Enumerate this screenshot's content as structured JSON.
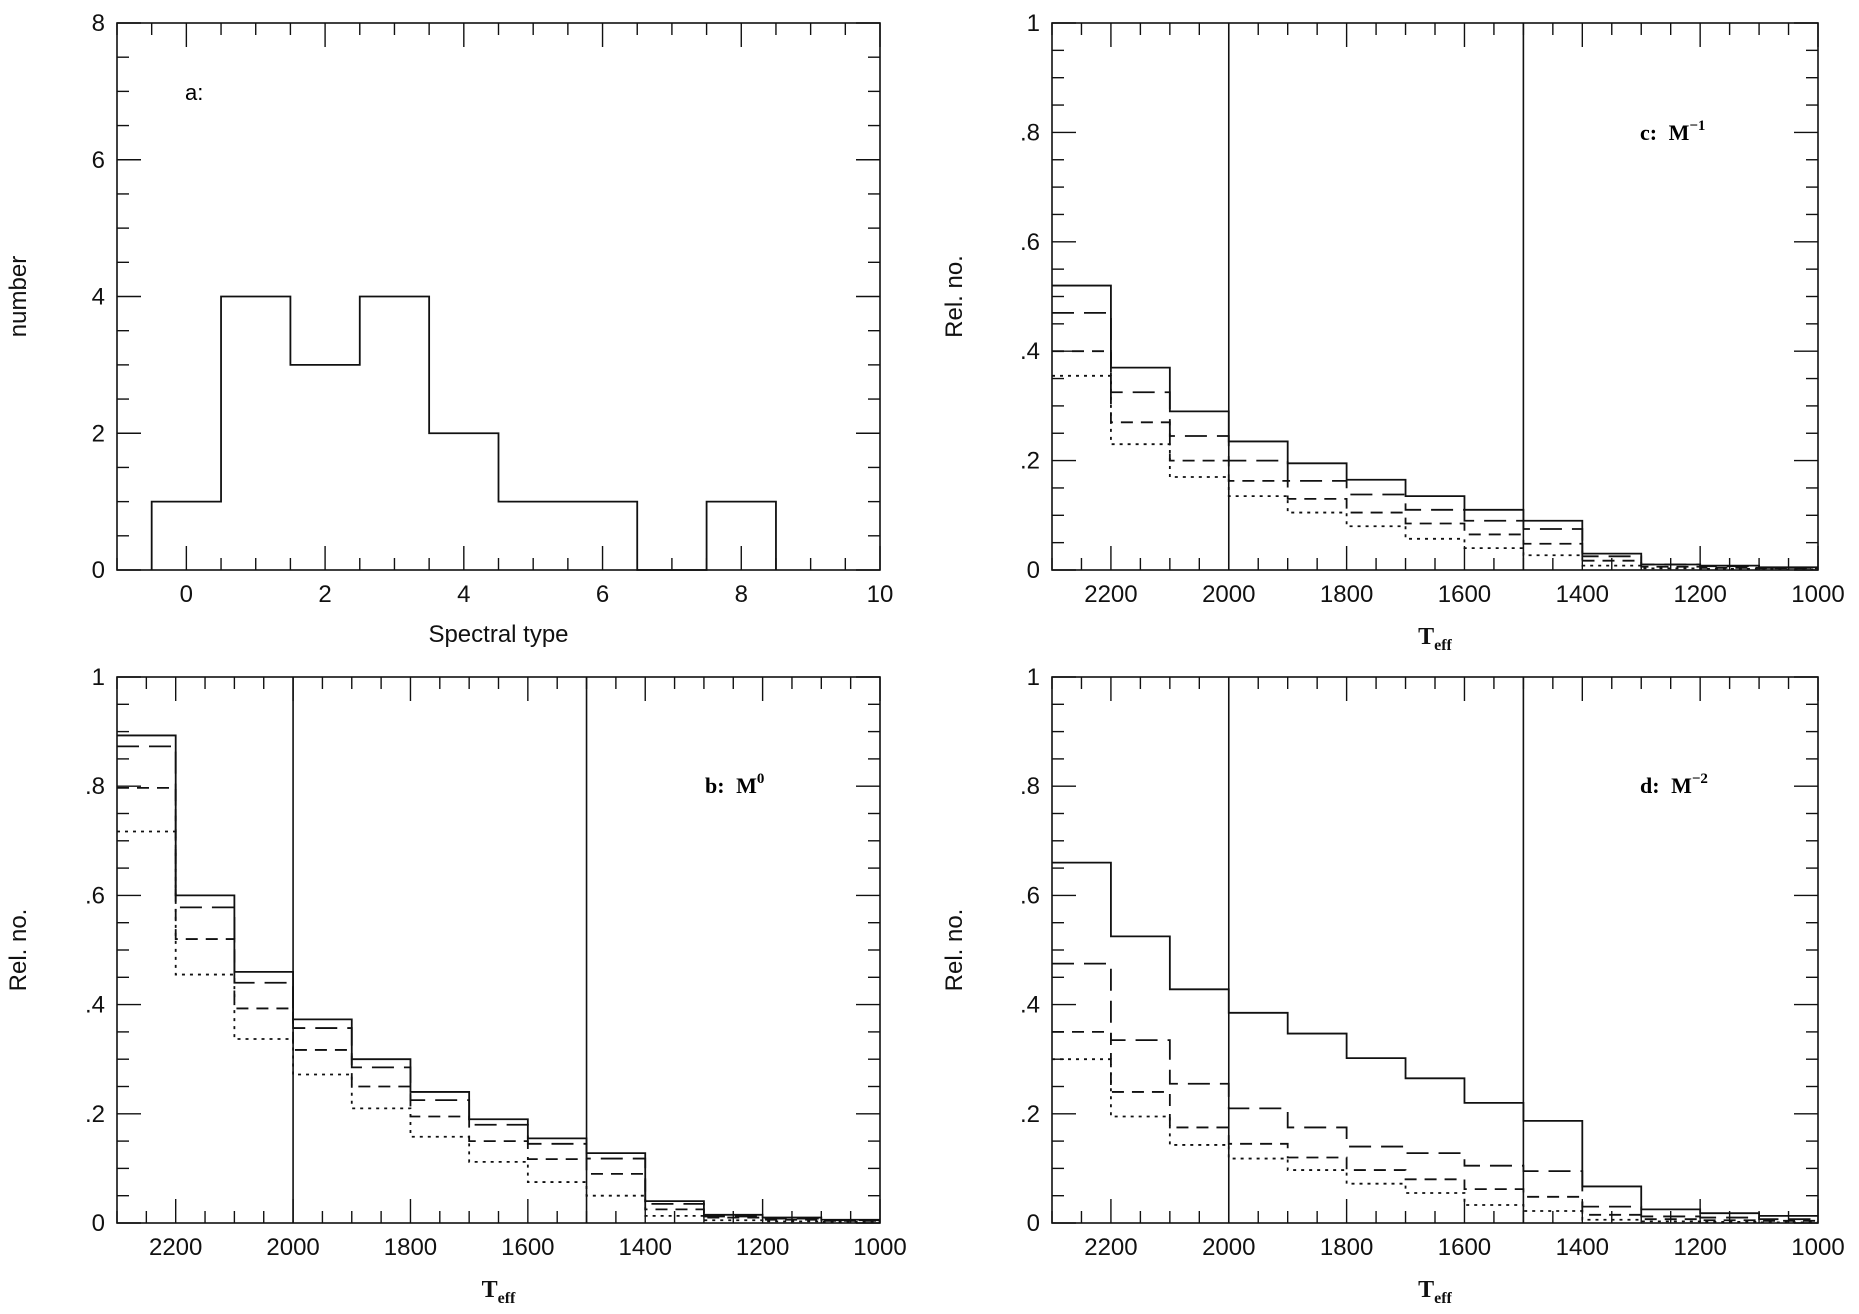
{
  "figure": {
    "panel_count": 4
  },
  "chart_data": [
    {
      "id": "a",
      "type": "bar",
      "style": "step-histogram",
      "annotation": "a:",
      "xlabel": "Spectral type",
      "ylabel": "number",
      "xlim": [
        -1,
        10
      ],
      "ylim": [
        0,
        8
      ],
      "xticks": [
        0,
        2,
        4,
        6,
        8,
        10
      ],
      "yticks": [
        0,
        2,
        4,
        6,
        8
      ],
      "xtick_labels": [
        "0",
        "2",
        "4",
        "6",
        "8",
        "10"
      ],
      "ytick_labels": [
        "0",
        "2",
        "4",
        "6",
        "8"
      ],
      "categories": [
        0,
        1,
        2,
        3,
        4,
        5,
        6,
        7,
        8
      ],
      "values": [
        1,
        4,
        3,
        4,
        2,
        1,
        1,
        0,
        1
      ],
      "bin_width": 1
    },
    {
      "id": "c",
      "type": "bar",
      "style": "step-histogram",
      "annotation": "c:",
      "annotation_M": "M",
      "annotation_exp": "−1",
      "xlabel_main": "T",
      "xlabel_sub": "eff",
      "ylabel": "Rel. no.",
      "xlim": [
        2300,
        1000
      ],
      "ylim": [
        0,
        1
      ],
      "xticks": [
        2200,
        2000,
        1800,
        1600,
        1400,
        1200,
        1000
      ],
      "yticks": [
        0,
        0.2,
        0.4,
        0.6,
        0.8,
        1
      ],
      "xtick_labels": [
        "2200",
        "2000",
        "1800",
        "1600",
        "1400",
        "1200",
        "1000"
      ],
      "ytick_labels": [
        "0",
        ".2",
        ".4",
        ".6",
        ".8",
        "1"
      ],
      "vlines": [
        2000,
        1500
      ],
      "bin_edges": [
        2300,
        2200,
        2100,
        2000,
        1900,
        1800,
        1700,
        1600,
        1500,
        1400,
        1300,
        1200,
        1100,
        1000
      ],
      "series": [
        {
          "style": "solid",
          "values": [
            0.52,
            0.37,
            0.29,
            0.235,
            0.195,
            0.165,
            0.135,
            0.11,
            0.09,
            0.03,
            0.01,
            0.008,
            0.005
          ]
        },
        {
          "style": "long-dash",
          "values": [
            0.47,
            0.325,
            0.245,
            0.2,
            0.163,
            0.138,
            0.11,
            0.09,
            0.075,
            0.025,
            0.01,
            0.007,
            0.004
          ]
        },
        {
          "style": "dash",
          "values": [
            0.4,
            0.27,
            0.2,
            0.163,
            0.13,
            0.105,
            0.085,
            0.065,
            0.048,
            0.017,
            0.006,
            0.004,
            0.003
          ]
        },
        {
          "style": "dot",
          "values": [
            0.355,
            0.23,
            0.17,
            0.135,
            0.105,
            0.08,
            0.057,
            0.04,
            0.027,
            0.008,
            0.003,
            0.002,
            0.001
          ]
        }
      ]
    },
    {
      "id": "b",
      "type": "bar",
      "style": "step-histogram",
      "annotation": "b:",
      "annotation_M": "M",
      "annotation_exp": "0",
      "xlabel_main": "T",
      "xlabel_sub": "eff",
      "ylabel": "Rel. no.",
      "xlim": [
        2300,
        1000
      ],
      "ylim": [
        0,
        1
      ],
      "xticks": [
        2200,
        2000,
        1800,
        1600,
        1400,
        1200,
        1000
      ],
      "yticks": [
        0,
        0.2,
        0.4,
        0.6,
        0.8,
        1
      ],
      "xtick_labels": [
        "2200",
        "2000",
        "1800",
        "1600",
        "1400",
        "1200",
        "1000"
      ],
      "ytick_labels": [
        "0",
        ".2",
        ".4",
        ".6",
        ".8",
        "1"
      ],
      "vlines": [
        2000,
        1500
      ],
      "bin_edges": [
        2300,
        2200,
        2100,
        2000,
        1900,
        1800,
        1700,
        1600,
        1500,
        1400,
        1300,
        1200,
        1100,
        1000
      ],
      "series": [
        {
          "style": "solid",
          "values": [
            0.893,
            0.6,
            0.46,
            0.373,
            0.3,
            0.24,
            0.19,
            0.155,
            0.128,
            0.04,
            0.015,
            0.01,
            0.006
          ]
        },
        {
          "style": "long-dash",
          "values": [
            0.873,
            0.578,
            0.44,
            0.357,
            0.285,
            0.225,
            0.18,
            0.145,
            0.118,
            0.035,
            0.012,
            0.008,
            0.005
          ]
        },
        {
          "style": "dash",
          "values": [
            0.797,
            0.52,
            0.393,
            0.317,
            0.25,
            0.195,
            0.15,
            0.117,
            0.09,
            0.025,
            0.01,
            0.006,
            0.004
          ]
        },
        {
          "style": "dot",
          "values": [
            0.717,
            0.455,
            0.337,
            0.272,
            0.21,
            0.158,
            0.112,
            0.075,
            0.05,
            0.013,
            0.005,
            0.003,
            0.002
          ]
        }
      ]
    },
    {
      "id": "d",
      "type": "bar",
      "style": "step-histogram",
      "annotation": "d:",
      "annotation_M": "M",
      "annotation_exp": "−2",
      "xlabel_main": "T",
      "xlabel_sub": "eff",
      "ylabel": "Rel. no.",
      "xlim": [
        2300,
        1000
      ],
      "ylim": [
        0,
        1
      ],
      "xticks": [
        2200,
        2000,
        1800,
        1600,
        1400,
        1200,
        1000
      ],
      "yticks": [
        0,
        0.2,
        0.4,
        0.6,
        0.8,
        1
      ],
      "xtick_labels": [
        "2200",
        "2000",
        "1800",
        "1600",
        "1400",
        "1200",
        "1000"
      ],
      "ytick_labels": [
        "0",
        ".2",
        ".4",
        ".6",
        ".8",
        "1"
      ],
      "vlines": [
        2000,
        1500
      ],
      "bin_edges": [
        2300,
        2200,
        2100,
        2000,
        1900,
        1800,
        1700,
        1600,
        1500,
        1400,
        1300,
        1200,
        1100,
        1000
      ],
      "series": [
        {
          "style": "solid",
          "values": [
            0.66,
            0.525,
            0.428,
            0.385,
            0.347,
            0.302,
            0.265,
            0.22,
            0.187,
            0.067,
            0.025,
            0.018,
            0.013
          ]
        },
        {
          "style": "long-dash",
          "values": [
            0.475,
            0.335,
            0.255,
            0.21,
            0.175,
            0.14,
            0.128,
            0.105,
            0.095,
            0.03,
            0.012,
            0.01,
            0.007
          ]
        },
        {
          "style": "dash",
          "values": [
            0.35,
            0.24,
            0.175,
            0.145,
            0.12,
            0.097,
            0.08,
            0.062,
            0.048,
            0.015,
            0.007,
            0.005,
            0.004
          ]
        },
        {
          "style": "dot",
          "values": [
            0.3,
            0.195,
            0.143,
            0.118,
            0.097,
            0.072,
            0.055,
            0.033,
            0.022,
            0.006,
            0.003,
            0.002,
            0.001
          ]
        }
      ]
    }
  ]
}
